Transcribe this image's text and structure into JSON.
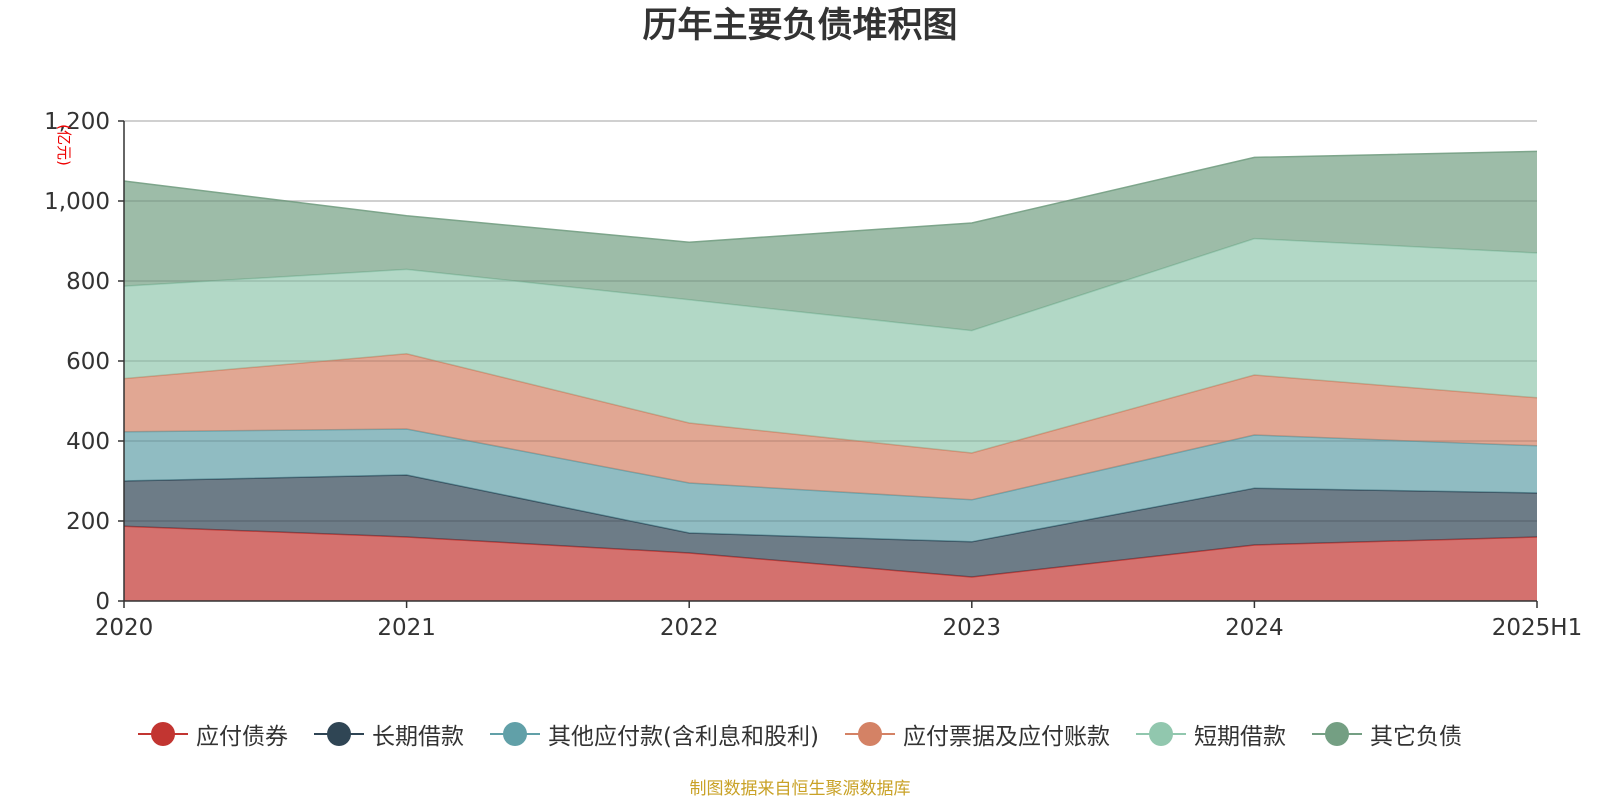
{
  "chart_data": {
    "type": "area",
    "stacked": true,
    "title": "历年主要负债堆积图",
    "ylabel": "(亿元)",
    "x": [
      "2020",
      "2021",
      "2022",
      "2023",
      "2024",
      "2025H1"
    ],
    "ylim": [
      0,
      1200
    ],
    "yticks": [
      0,
      200,
      400,
      600,
      800,
      1000,
      1200
    ],
    "ytick_labels": [
      "0",
      "200",
      "400",
      "600",
      "800",
      "1,000",
      "1,200"
    ],
    "grid": true,
    "legend_position": "bottom",
    "series": [
      {
        "name": "应付债券",
        "color": "#c23531",
        "values": [
          187,
          160,
          120,
          60,
          140,
          160
        ]
      },
      {
        "name": "长期借款",
        "color": "#2f4554",
        "values": [
          113,
          155,
          50,
          88,
          142,
          110
        ]
      },
      {
        "name": "其他应付款(含利息和股利)",
        "color": "#61a0a8",
        "values": [
          123,
          115,
          125,
          105,
          133,
          118
        ]
      },
      {
        "name": "应付票据及应付账款",
        "color": "#d48265",
        "values": [
          133,
          188,
          150,
          117,
          150,
          120
        ]
      },
      {
        "name": "短期借款",
        "color": "#91c7ae",
        "values": [
          231,
          211,
          308,
          306,
          341,
          362
        ]
      },
      {
        "name": "其它负债",
        "color": "#749f83",
        "values": [
          263,
          134,
          144,
          269,
          203,
          254
        ]
      }
    ]
  },
  "source_text": "制图数据来自恒生聚源数据库"
}
